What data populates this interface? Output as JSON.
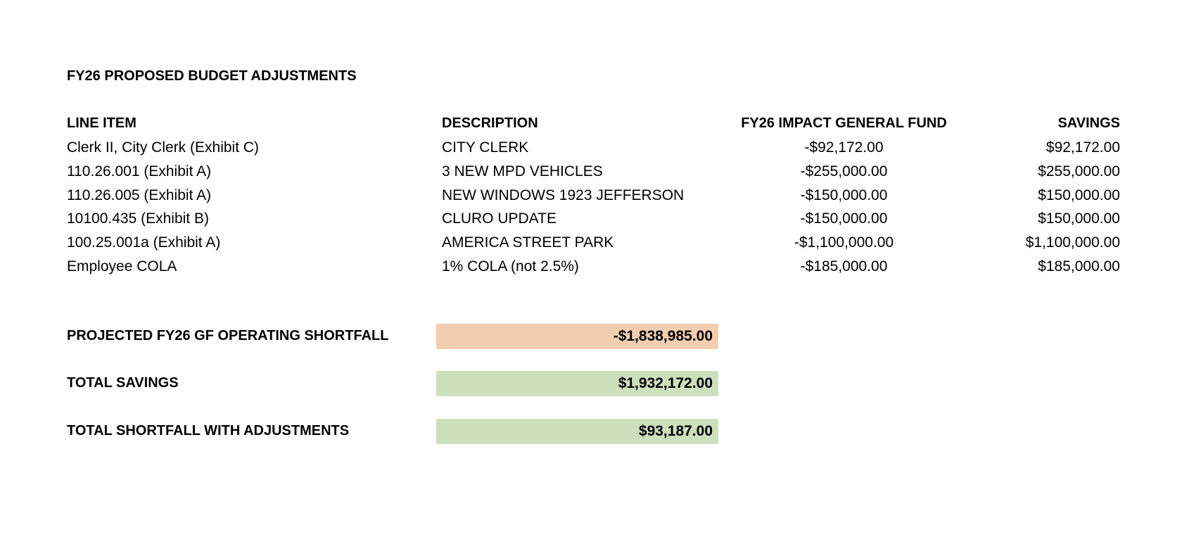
{
  "title": "FY26 PROPOSED BUDGET ADJUSTMENTS",
  "table": {
    "headers": [
      "LINE ITEM",
      "DESCRIPTION",
      "FY26 IMPACT GENERAL FUND",
      "SAVINGS"
    ],
    "rows": [
      [
        "Clerk II, City Clerk (Exhibit C)",
        "CITY CLERK",
        "-$92,172.00",
        "$92,172.00"
      ],
      [
        "110.26.001 (Exhibit A)",
        "3 NEW MPD VEHICLES",
        "-$255,000.00",
        "$255,000.00"
      ],
      [
        "110.26.005 (Exhibit A)",
        "NEW WINDOWS 1923 JEFFERSON",
        "-$150,000.00",
        "$150,000.00"
      ],
      [
        "10100.435 (Exhibit B)",
        "CLURO UPDATE",
        "-$150,000.00",
        "$150,000.00"
      ],
      [
        "100.25.001a (Exhibit A)",
        "AMERICA STREET PARK",
        "-$1,100,000.00",
        "$1,100,000.00"
      ],
      [
        "Employee COLA",
        "1% COLA (not 2.5%)",
        "-$185,000.00",
        "$185,000.00"
      ]
    ]
  },
  "summary": [
    {
      "label": "PROJECTED FY26 GF OPERATING SHORTFALL",
      "value": "-$1,838,985.00",
      "color": "#F2CEB0"
    },
    {
      "label": "TOTAL SAVINGS",
      "value": "$1,932,172.00",
      "color": "#CDE0BD"
    },
    {
      "label": "TOTAL SHORTFALL WITH ADJUSTMENTS",
      "value": "$93,187.00",
      "color": "#CDE0BD"
    }
  ]
}
